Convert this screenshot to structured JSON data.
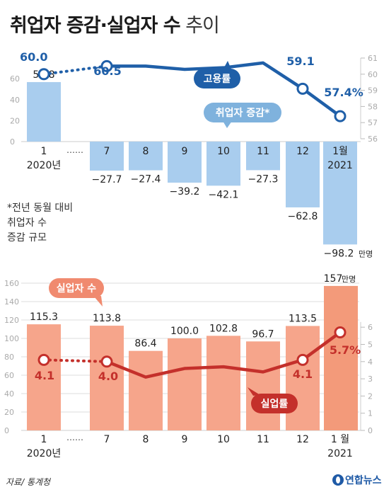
{
  "header": {
    "title_main": "취업자 증감·실업자 수",
    "title_sub": "추이"
  },
  "colors": {
    "employment_line": "#1f5fa8",
    "employment_bar": "#a9cdee",
    "unemployment_line": "#c4302b",
    "unemployment_bar": "#f6a58b",
    "unemployment_bar_last": "#f39a7a",
    "pill_blue_dark": "#1f5fa8",
    "pill_blue_light": "#7fb2dd",
    "pill_red_light": "#f08a6f",
    "pill_red_dark": "#c4302b",
    "axis_text": "#aaaaaa",
    "grid": "#dddddd"
  },
  "footnote": "*전년 동월 대비\n취업자 수\n증감 규모",
  "source": "자료/ 통계청",
  "logo": "연합뉴스",
  "chart_data": [
    {
      "type": "bar",
      "title": "취업자 증감",
      "categories": [
        "1",
        "7",
        "8",
        "9",
        "10",
        "11",
        "12",
        "1월"
      ],
      "category_sub": [
        "2020년",
        "",
        "",
        "",
        "",
        "",
        "",
        "2021"
      ],
      "ellipsis": "……",
      "series": [
        {
          "name": "취업자 증감*",
          "values": [
            56.8,
            -27.7,
            -27.4,
            -39.2,
            -42.1,
            -27.3,
            -62.8,
            -98.2
          ],
          "labels": [
            "56.8",
            "−27.7",
            "−27.4",
            "−39.2",
            "−42.1",
            "−27.3",
            "−62.8",
            "−98.2"
          ],
          "unit": "만명"
        },
        {
          "name": "고용률",
          "values": [
            60.0,
            60.5,
            60.5,
            60.3,
            60.4,
            60.7,
            59.1,
            57.4
          ],
          "labels": [
            "60.0",
            "60.5",
            "",
            "",
            "",
            "",
            "59.1",
            "57.4%"
          ]
        }
      ],
      "left_axis": {
        "ticks": [
          0,
          20,
          40,
          60
        ]
      },
      "right_axis": {
        "ticks": [
          56,
          57,
          58,
          59,
          60,
          61
        ],
        "ylim": [
          56,
          61
        ]
      }
    },
    {
      "type": "bar",
      "title": "실업자 수",
      "categories": [
        "1",
        "7",
        "8",
        "9",
        "10",
        "11",
        "12",
        "1 월"
      ],
      "category_sub": [
        "2020년",
        "",
        "",
        "",
        "",
        "",
        "",
        "2021"
      ],
      "ellipsis": "……",
      "series": [
        {
          "name": "실업자 수",
          "values": [
            115.3,
            113.8,
            86.4,
            100.0,
            102.8,
            96.7,
            113.5,
            157
          ],
          "labels": [
            "115.3",
            "113.8",
            "86.4",
            "100.0",
            "102.8",
            "96.7",
            "113.5",
            "157"
          ],
          "unit": "만명"
        },
        {
          "name": "실업률",
          "values": [
            4.1,
            4.0,
            3.1,
            3.6,
            3.7,
            3.4,
            4.1,
            5.7
          ],
          "labels": [
            "4.1",
            "4.0",
            "",
            "",
            "",
            "",
            "4.1",
            "5.7%"
          ]
        }
      ],
      "left_axis": {
        "ticks": [
          0,
          20,
          40,
          60,
          80,
          100,
          120,
          140,
          160
        ],
        "ylim": [
          0,
          160
        ]
      },
      "right_axis": {
        "ticks": [
          0,
          1,
          2,
          3,
          4,
          5,
          6
        ]
      }
    }
  ]
}
